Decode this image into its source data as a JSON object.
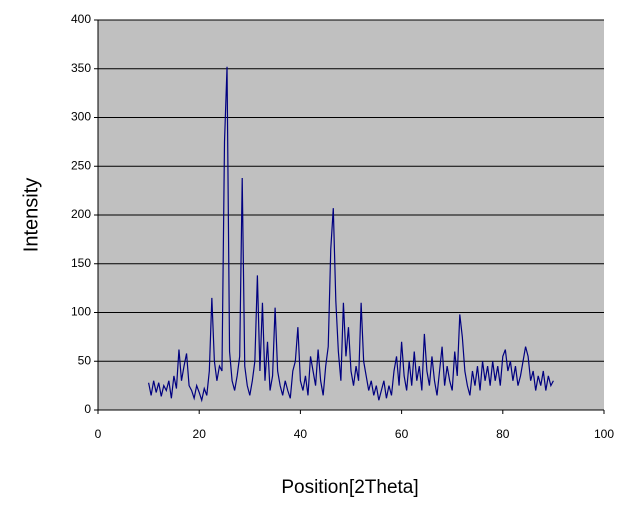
{
  "chart_data": {
    "type": "line",
    "y_label": "Intensity",
    "x_label": "Position[2Theta]",
    "x": [
      10,
      10.5,
      11,
      11.5,
      12,
      12.5,
      13,
      13.5,
      14,
      14.5,
      15,
      15.5,
      16,
      16.5,
      17,
      17.5,
      18,
      18.5,
      19,
      19.5,
      20,
      20.5,
      21,
      21.5,
      22,
      22.5,
      23,
      23.5,
      24,
      24.5,
      25,
      25.5,
      26,
      26.5,
      27,
      27.5,
      28,
      28.5,
      29,
      29.5,
      30,
      30.5,
      31,
      31.5,
      32,
      32.5,
      33,
      33.5,
      34,
      34.5,
      35,
      35.5,
      36,
      36.5,
      37,
      37.5,
      38,
      38.5,
      39,
      39.5,
      40,
      40.5,
      41,
      41.5,
      42,
      42.5,
      43,
      43.5,
      44,
      44.5,
      45,
      45.5,
      46,
      46.5,
      47,
      47.5,
      48,
      48.5,
      49,
      49.5,
      50,
      50.5,
      51,
      51.5,
      52,
      52.5,
      53,
      53.5,
      54,
      54.5,
      55,
      55.5,
      56,
      56.5,
      57,
      57.5,
      58,
      58.5,
      59,
      59.5,
      60,
      60.5,
      61,
      61.5,
      62,
      62.5,
      63,
      63.5,
      64,
      64.5,
      65,
      65.5,
      66,
      66.5,
      67,
      67.5,
      68,
      68.5,
      69,
      69.5,
      70,
      70.5,
      71,
      71.5,
      72,
      72.5,
      73,
      73.5,
      74,
      74.5,
      75,
      75.5,
      76,
      76.5,
      77,
      77.5,
      78,
      78.5,
      79,
      79.5,
      80,
      80.5,
      81,
      81.5,
      82,
      82.5,
      83,
      83.5,
      84,
      84.5,
      85,
      85.5,
      86,
      86.5,
      87,
      87.5,
      88,
      88.5,
      89,
      89.5,
      90
    ],
    "series": [
      {
        "color": "#000080",
        "values": [
          28,
          15,
          30,
          18,
          28,
          14,
          25,
          20,
          30,
          12,
          35,
          22,
          62,
          30,
          45,
          58,
          25,
          20,
          12,
          25,
          18,
          10,
          22,
          15,
          40,
          115,
          50,
          30,
          45,
          40,
          275,
          352,
          60,
          30,
          20,
          35,
          55,
          238,
          45,
          25,
          15,
          30,
          50,
          138,
          40,
          110,
          30,
          70,
          20,
          35,
          105,
          40,
          25,
          15,
          30,
          20,
          12,
          40,
          50,
          85,
          30,
          20,
          35,
          15,
          55,
          40,
          25,
          62,
          30,
          15,
          45,
          65,
          165,
          207,
          112,
          60,
          30,
          110,
          55,
          85,
          40,
          25,
          45,
          30,
          110,
          50,
          35,
          20,
          30,
          15,
          25,
          10,
          20,
          30,
          12,
          25,
          15,
          40,
          55,
          25,
          70,
          35,
          20,
          50,
          25,
          60,
          30,
          45,
          20,
          78,
          40,
          25,
          55,
          30,
          15,
          40,
          65,
          25,
          45,
          30,
          20,
          60,
          35,
          98,
          75,
          40,
          25,
          15,
          40,
          25,
          45,
          20,
          50,
          30,
          45,
          25,
          50,
          30,
          45,
          25,
          55,
          62,
          40,
          50,
          30,
          45,
          25,
          35,
          50,
          65,
          55,
          30,
          40,
          20,
          35,
          25,
          40,
          20,
          35,
          25,
          30
        ]
      }
    ],
    "xlim": [
      0,
      100
    ],
    "xticks": [
      0,
      20,
      40,
      60,
      80,
      100
    ],
    "ylim": [
      0,
      400
    ],
    "yticks": [
      0,
      50,
      100,
      150,
      200,
      250,
      300,
      350,
      400
    ],
    "grid": true,
    "background": "#c0c0c0"
  }
}
